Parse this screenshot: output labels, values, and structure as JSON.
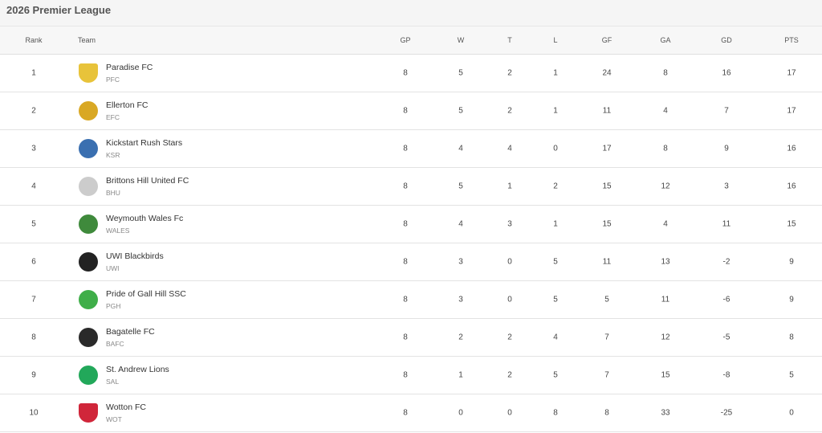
{
  "title": "2026 Premier League",
  "columns": {
    "rank": "Rank",
    "team": "Team",
    "gp": "GP",
    "w": "W",
    "t": "T",
    "l": "L",
    "gf": "GF",
    "ga": "GA",
    "gd": "GD",
    "pts": "PTS"
  },
  "rows": [
    {
      "rank": "1",
      "name": "Paradise FC",
      "abbr": "PFC",
      "gp": "8",
      "w": "5",
      "t": "2",
      "l": "1",
      "gf": "24",
      "ga": "8",
      "gd": "16",
      "pts": "17",
      "logo": "shield-icon",
      "color": "#e8c33a"
    },
    {
      "rank": "2",
      "name": "Ellerton FC",
      "abbr": "EFC",
      "gp": "8",
      "w": "5",
      "t": "2",
      "l": "1",
      "gf": "11",
      "ga": "4",
      "gd": "7",
      "pts": "17",
      "logo": "crest-icon",
      "color": "#d9a824"
    },
    {
      "rank": "3",
      "name": "Kickstart Rush Stars",
      "abbr": "KSR",
      "gp": "8",
      "w": "4",
      "t": "4",
      "l": "0",
      "gf": "17",
      "ga": "8",
      "gd": "9",
      "pts": "16",
      "logo": "crest-icon",
      "color": "#3a6fb0"
    },
    {
      "rank": "4",
      "name": "Brittons Hill United FC",
      "abbr": "BHU",
      "gp": "8",
      "w": "5",
      "t": "1",
      "l": "2",
      "gf": "15",
      "ga": "12",
      "gd": "3",
      "pts": "16",
      "logo": "crest-icon",
      "color": "#cccccc"
    },
    {
      "rank": "5",
      "name": "Weymouth Wales Fc",
      "abbr": "WALES",
      "gp": "8",
      "w": "4",
      "t": "3",
      "l": "1",
      "gf": "15",
      "ga": "4",
      "gd": "11",
      "pts": "15",
      "logo": "crest-icon",
      "color": "#3f8a3c"
    },
    {
      "rank": "6",
      "name": "UWI Blackbirds",
      "abbr": "UWI",
      "gp": "8",
      "w": "3",
      "t": "0",
      "l": "5",
      "gf": "11",
      "ga": "13",
      "gd": "-2",
      "pts": "9",
      "logo": "bird-icon",
      "color": "#222222"
    },
    {
      "rank": "7",
      "name": "Pride of Gall Hill SSC",
      "abbr": "PGH",
      "gp": "8",
      "w": "3",
      "t": "0",
      "l": "5",
      "gf": "5",
      "ga": "11",
      "gd": "-6",
      "pts": "9",
      "logo": "crest-icon",
      "color": "#3fae49"
    },
    {
      "rank": "8",
      "name": "Bagatelle FC",
      "abbr": "BAFC",
      "gp": "8",
      "w": "2",
      "t": "2",
      "l": "4",
      "gf": "7",
      "ga": "12",
      "gd": "-5",
      "pts": "8",
      "logo": "crest-icon",
      "color": "#2a2a2a"
    },
    {
      "rank": "9",
      "name": "St. Andrew Lions",
      "abbr": "SAL",
      "gp": "8",
      "w": "1",
      "t": "2",
      "l": "5",
      "gf": "7",
      "ga": "15",
      "gd": "-8",
      "pts": "5",
      "logo": "crest-icon",
      "color": "#22a85a"
    },
    {
      "rank": "10",
      "name": "Wotton FC",
      "abbr": "WOT",
      "gp": "8",
      "w": "0",
      "t": "0",
      "l": "8",
      "gf": "8",
      "ga": "33",
      "gd": "-25",
      "pts": "0",
      "logo": "shield-icon",
      "color": "#d0263a"
    }
  ]
}
